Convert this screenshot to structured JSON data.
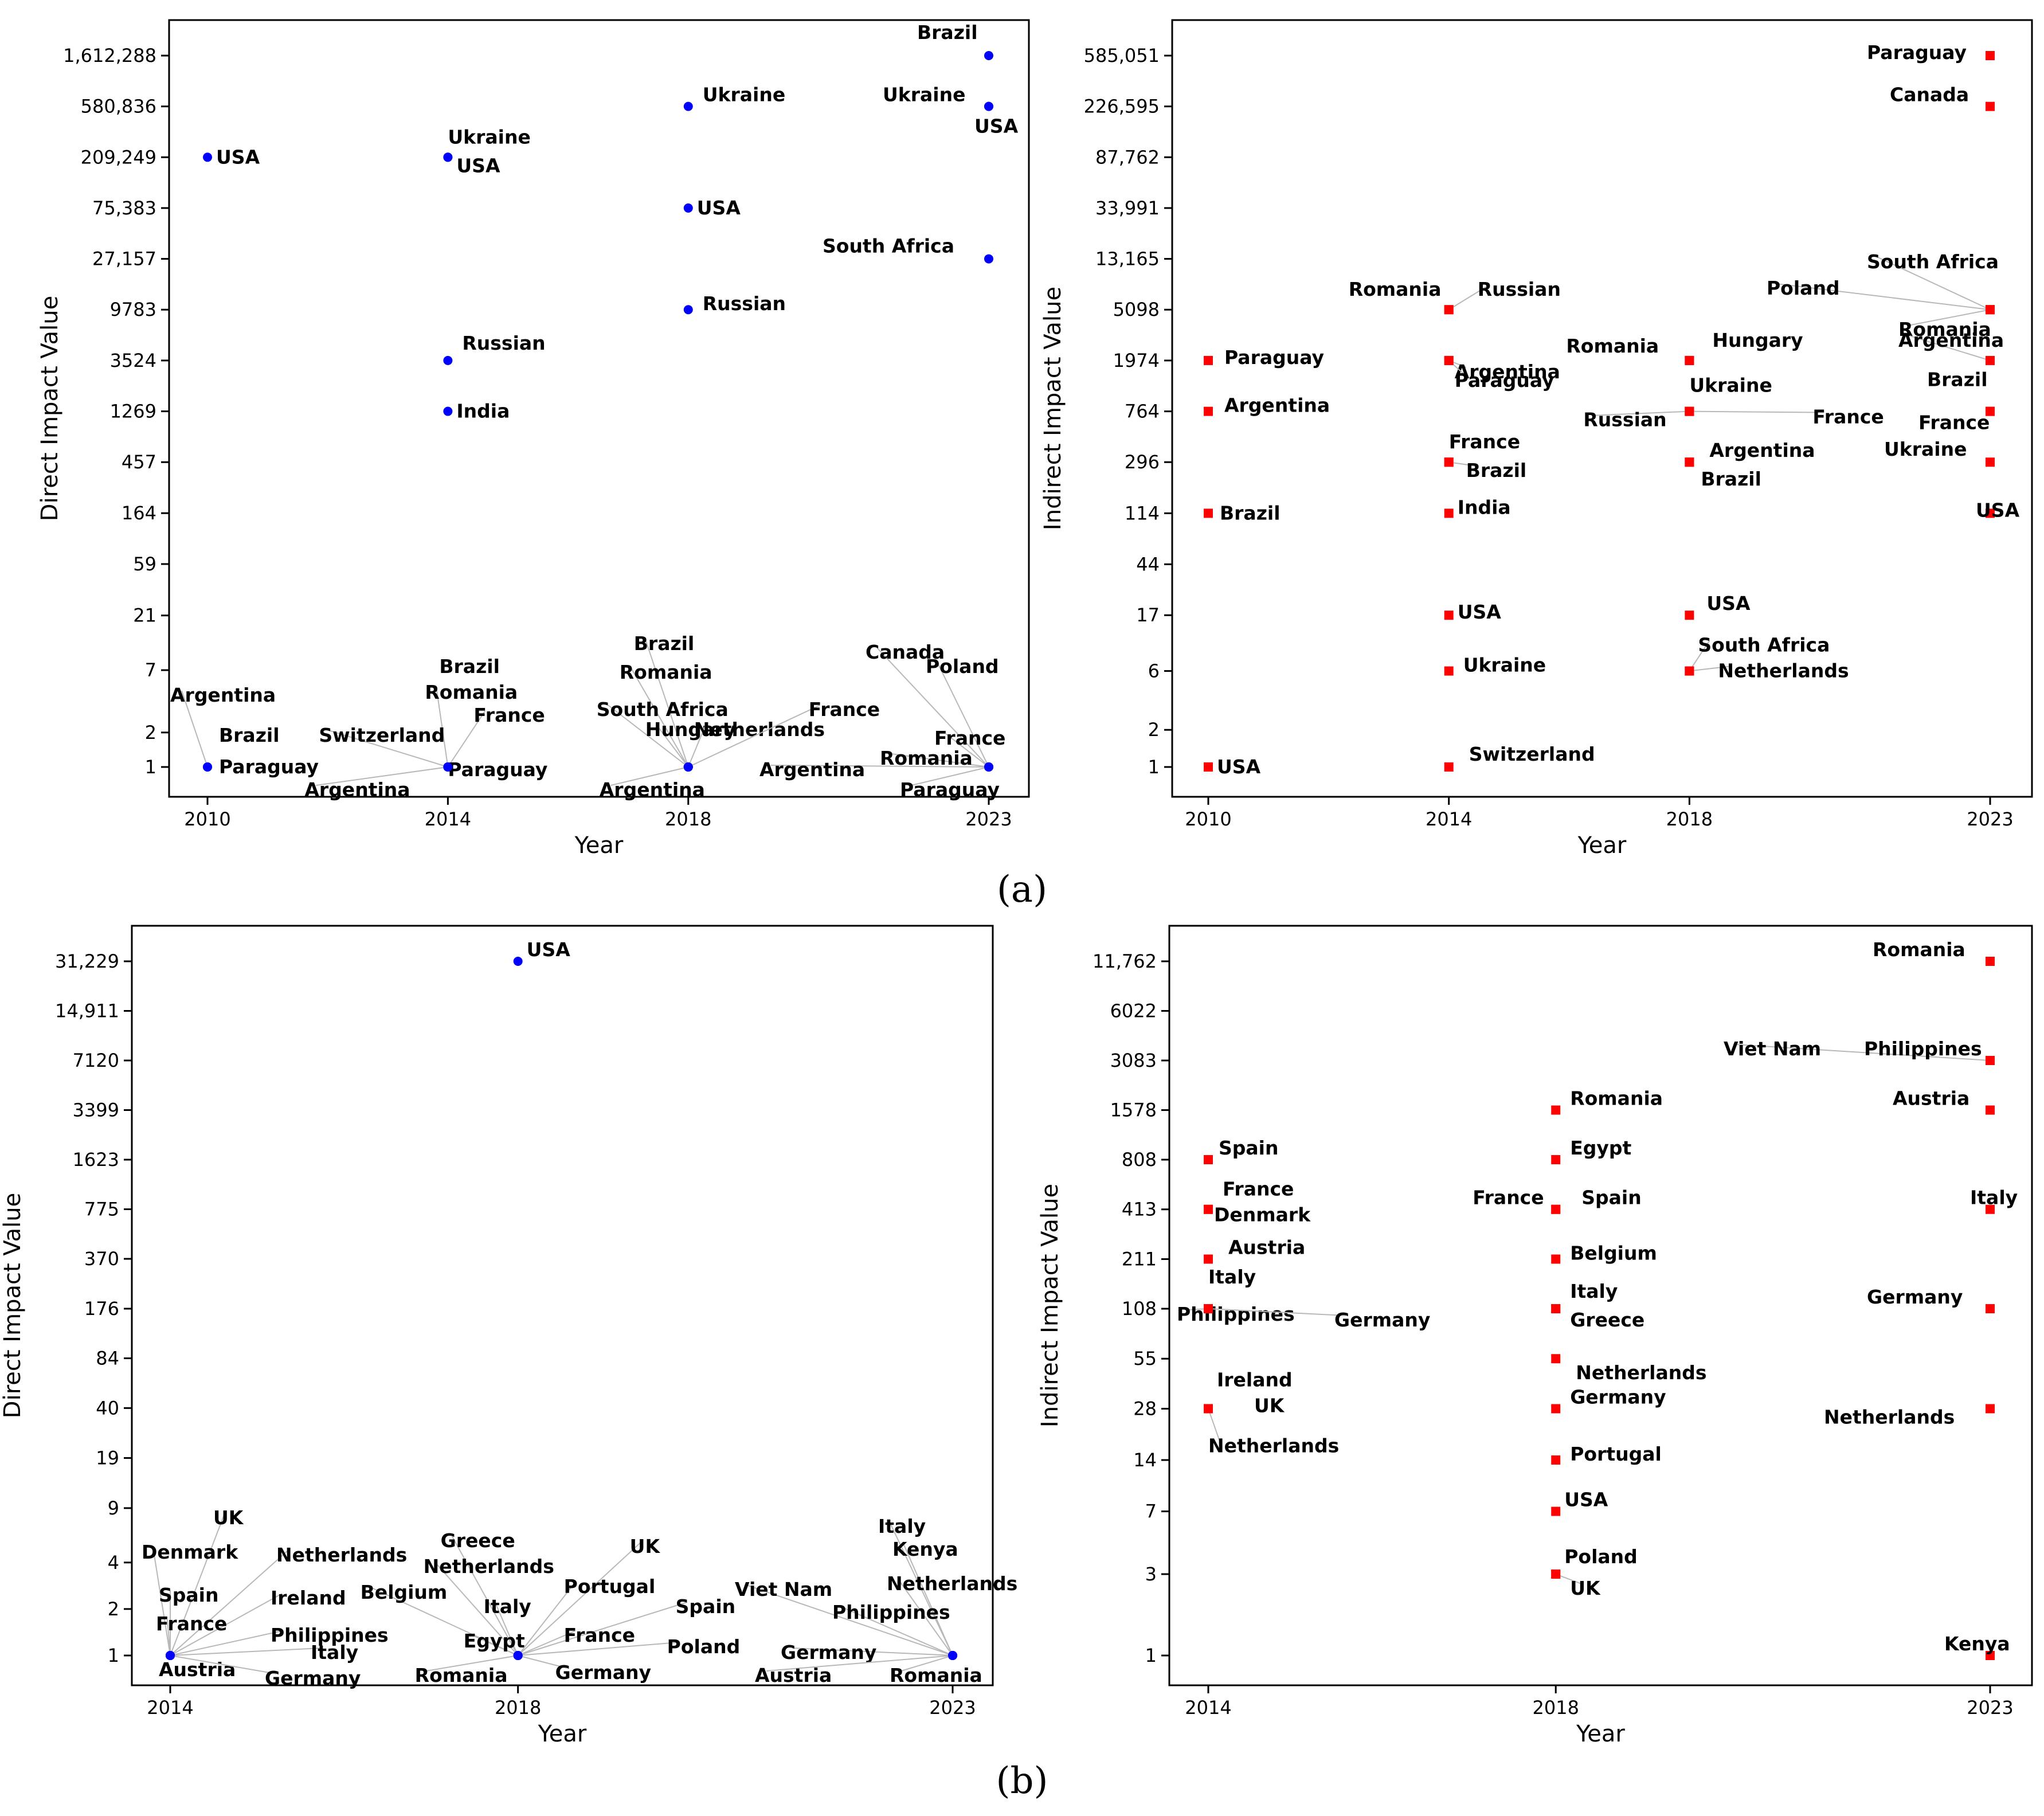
{
  "captions": {
    "a": "(a)",
    "b": "(b)"
  },
  "colors": {
    "direct": "#0000ff",
    "indirect": "#ff0000"
  },
  "chart_data": [
    {
      "id": "a-direct",
      "type": "scatter",
      "marker": "circle",
      "xlabel": "Year",
      "ylabel": "Direct Impact Value",
      "xticks": [
        "2010",
        "2014",
        "2018",
        "2023"
      ],
      "yticks": [
        "1",
        "2",
        "7",
        "21",
        "59",
        "164",
        "457",
        "1269",
        "3524",
        "9783",
        "27,157",
        "75,383",
        "209,249",
        "580,836",
        "1,612,288"
      ],
      "points": [
        {
          "x": 2010,
          "y": 209249,
          "label": "USA"
        },
        {
          "x": 2010,
          "y": 1,
          "label": "Paraguay"
        },
        {
          "x": 2010,
          "y": 1,
          "label": "Brazil"
        },
        {
          "x": 2010,
          "y": 1,
          "label": "Argentina"
        },
        {
          "x": 2014,
          "y": 209249,
          "label": "Ukraine"
        },
        {
          "x": 2014,
          "y": 209249,
          "label": "USA"
        },
        {
          "x": 2014,
          "y": 3524,
          "label": "Russian"
        },
        {
          "x": 2014,
          "y": 1269,
          "label": "India"
        },
        {
          "x": 2014,
          "y": 1,
          "label": "Brazil"
        },
        {
          "x": 2014,
          "y": 1,
          "label": "Romania"
        },
        {
          "x": 2014,
          "y": 1,
          "label": "France"
        },
        {
          "x": 2014,
          "y": 1,
          "label": "Switzerland"
        },
        {
          "x": 2014,
          "y": 1,
          "label": "Paraguay"
        },
        {
          "x": 2014,
          "y": 1,
          "label": "Argentina"
        },
        {
          "x": 2018,
          "y": 580836,
          "label": "Ukraine"
        },
        {
          "x": 2018,
          "y": 75383,
          "label": "USA"
        },
        {
          "x": 2018,
          "y": 9783,
          "label": "Russian"
        },
        {
          "x": 2018,
          "y": 1,
          "label": "Brazil"
        },
        {
          "x": 2018,
          "y": 1,
          "label": "Romania"
        },
        {
          "x": 2018,
          "y": 1,
          "label": "South Africa"
        },
        {
          "x": 2018,
          "y": 1,
          "label": "Hungary"
        },
        {
          "x": 2018,
          "y": 1,
          "label": "Netherlands"
        },
        {
          "x": 2018,
          "y": 1,
          "label": "France"
        },
        {
          "x": 2018,
          "y": 1,
          "label": "Argentina"
        },
        {
          "x": 2023,
          "y": 1612288,
          "label": "Brazil"
        },
        {
          "x": 2023,
          "y": 580836,
          "label": "Ukraine"
        },
        {
          "x": 2023,
          "y": 580836,
          "label": "USA"
        },
        {
          "x": 2023,
          "y": 27157,
          "label": "South Africa"
        },
        {
          "x": 2023,
          "y": 1,
          "label": "Canada"
        },
        {
          "x": 2023,
          "y": 1,
          "label": "Poland"
        },
        {
          "x": 2023,
          "y": 1,
          "label": "France"
        },
        {
          "x": 2023,
          "y": 1,
          "label": "Romania"
        },
        {
          "x": 2023,
          "y": 1,
          "label": "Argentina"
        },
        {
          "x": 2023,
          "y": 1,
          "label": "Paraguay"
        }
      ]
    },
    {
      "id": "a-indirect",
      "type": "scatter",
      "marker": "square",
      "xlabel": "Year",
      "ylabel": "Indirect Impact Value",
      "xticks": [
        "2010",
        "2014",
        "2018",
        "2023"
      ],
      "yticks": [
        "1",
        "2",
        "6",
        "17",
        "44",
        "114",
        "296",
        "764",
        "1974",
        "5098",
        "13,165",
        "33,991",
        "87,762",
        "226,595",
        "585,051"
      ],
      "points": [
        {
          "x": 2010,
          "y": 1974,
          "label": "Paraguay"
        },
        {
          "x": 2010,
          "y": 764,
          "label": "Argentina"
        },
        {
          "x": 2010,
          "y": 114,
          "label": "Brazil"
        },
        {
          "x": 2010,
          "y": 1,
          "label": "USA"
        },
        {
          "x": 2014,
          "y": 5098,
          "label": "Romania"
        },
        {
          "x": 2014,
          "y": 5098,
          "label": "Russian"
        },
        {
          "x": 2014,
          "y": 1974,
          "label": "Argentina"
        },
        {
          "x": 2014,
          "y": 1974,
          "label": "Paraguay"
        },
        {
          "x": 2014,
          "y": 296,
          "label": "France"
        },
        {
          "x": 2014,
          "y": 296,
          "label": "Brazil"
        },
        {
          "x": 2014,
          "y": 114,
          "label": "India"
        },
        {
          "x": 2014,
          "y": 17,
          "label": "USA"
        },
        {
          "x": 2014,
          "y": 6,
          "label": "Ukraine"
        },
        {
          "x": 2014,
          "y": 1,
          "label": "Switzerland"
        },
        {
          "x": 2018,
          "y": 1974,
          "label": "Romania"
        },
        {
          "x": 2018,
          "y": 1974,
          "label": "Hungary"
        },
        {
          "x": 2018,
          "y": 764,
          "label": "Ukraine"
        },
        {
          "x": 2018,
          "y": 764,
          "label": "Russian"
        },
        {
          "x": 2018,
          "y": 764,
          "label": "France"
        },
        {
          "x": 2018,
          "y": 296,
          "label": "Argentina"
        },
        {
          "x": 2018,
          "y": 296,
          "label": "Brazil"
        },
        {
          "x": 2018,
          "y": 17,
          "label": "USA"
        },
        {
          "x": 2018,
          "y": 6,
          "label": "South Africa"
        },
        {
          "x": 2018,
          "y": 6,
          "label": "Netherlands"
        },
        {
          "x": 2023,
          "y": 585051,
          "label": "Paraguay"
        },
        {
          "x": 2023,
          "y": 226595,
          "label": "Canada"
        },
        {
          "x": 2023,
          "y": 5098,
          "label": "South Africa"
        },
        {
          "x": 2023,
          "y": 5098,
          "label": "Poland"
        },
        {
          "x": 2023,
          "y": 5098,
          "label": "Romania"
        },
        {
          "x": 2023,
          "y": 1974,
          "label": "Argentina"
        },
        {
          "x": 2023,
          "y": 764,
          "label": "Brazil"
        },
        {
          "x": 2023,
          "y": 764,
          "label": "France"
        },
        {
          "x": 2023,
          "y": 296,
          "label": "Ukraine"
        },
        {
          "x": 2023,
          "y": 114,
          "label": "USA"
        }
      ]
    },
    {
      "id": "b-direct",
      "type": "scatter",
      "marker": "circle",
      "xlabel": "Year",
      "ylabel": "Direct Impact Value",
      "xticks": [
        "2014",
        "2018",
        "2023"
      ],
      "yticks": [
        "1",
        "2",
        "4",
        "9",
        "19",
        "40",
        "84",
        "176",
        "370",
        "775",
        "1623",
        "3399",
        "7120",
        "14,911",
        "31,229"
      ],
      "points": [
        {
          "x": 2014,
          "y": 1,
          "label": "UK"
        },
        {
          "x": 2014,
          "y": 1,
          "label": "Denmark"
        },
        {
          "x": 2014,
          "y": 1,
          "label": "Netherlands"
        },
        {
          "x": 2014,
          "y": 1,
          "label": "Spain"
        },
        {
          "x": 2014,
          "y": 1,
          "label": "Ireland"
        },
        {
          "x": 2014,
          "y": 1,
          "label": "France"
        },
        {
          "x": 2014,
          "y": 1,
          "label": "Philippines"
        },
        {
          "x": 2014,
          "y": 1,
          "label": "Italy"
        },
        {
          "x": 2014,
          "y": 1,
          "label": "Austria"
        },
        {
          "x": 2014,
          "y": 1,
          "label": "Germany"
        },
        {
          "x": 2018,
          "y": 31229,
          "label": "USA"
        },
        {
          "x": 2018,
          "y": 1,
          "label": "Greece"
        },
        {
          "x": 2018,
          "y": 1,
          "label": "Netherlands"
        },
        {
          "x": 2018,
          "y": 1,
          "label": "Belgium"
        },
        {
          "x": 2018,
          "y": 1,
          "label": "Italy"
        },
        {
          "x": 2018,
          "y": 1,
          "label": "Egypt"
        },
        {
          "x": 2018,
          "y": 1,
          "label": "UK"
        },
        {
          "x": 2018,
          "y": 1,
          "label": "Portugal"
        },
        {
          "x": 2018,
          "y": 1,
          "label": "Spain"
        },
        {
          "x": 2018,
          "y": 1,
          "label": "France"
        },
        {
          "x": 2018,
          "y": 1,
          "label": "Poland"
        },
        {
          "x": 2018,
          "y": 1,
          "label": "Germany"
        },
        {
          "x": 2018,
          "y": 1,
          "label": "Romania"
        },
        {
          "x": 2023,
          "y": 1,
          "label": "Italy"
        },
        {
          "x": 2023,
          "y": 1,
          "label": "Kenya"
        },
        {
          "x": 2023,
          "y": 1,
          "label": "Netherlands"
        },
        {
          "x": 2023,
          "y": 1,
          "label": "Viet Nam"
        },
        {
          "x": 2023,
          "y": 1,
          "label": "Philippines"
        },
        {
          "x": 2023,
          "y": 1,
          "label": "Germany"
        },
        {
          "x": 2023,
          "y": 1,
          "label": "Austria"
        },
        {
          "x": 2023,
          "y": 1,
          "label": "Romania"
        }
      ]
    },
    {
      "id": "b-indirect",
      "type": "scatter",
      "marker": "square",
      "xlabel": "Year",
      "ylabel": "Indirect Impact Value",
      "xticks": [
        "2014",
        "2018",
        "2023"
      ],
      "yticks": [
        "1",
        "3",
        "7",
        "14",
        "28",
        "55",
        "108",
        "211",
        "413",
        "808",
        "1578",
        "3083",
        "6022",
        "11,762"
      ],
      "points": [
        {
          "x": 2014,
          "y": 808,
          "label": "Spain"
        },
        {
          "x": 2014,
          "y": 413,
          "label": "France"
        },
        {
          "x": 2014,
          "y": 413,
          "label": "Denmark"
        },
        {
          "x": 2014,
          "y": 211,
          "label": "Austria"
        },
        {
          "x": 2014,
          "y": 108,
          "label": "Italy"
        },
        {
          "x": 2014,
          "y": 108,
          "label": "Philippines"
        },
        {
          "x": 2014,
          "y": 108,
          "label": "Germany"
        },
        {
          "x": 2014,
          "y": 28,
          "label": "Ireland"
        },
        {
          "x": 2014,
          "y": 28,
          "label": "UK"
        },
        {
          "x": 2014,
          "y": 28,
          "label": "Netherlands"
        },
        {
          "x": 2018,
          "y": 1578,
          "label": "Romania"
        },
        {
          "x": 2018,
          "y": 808,
          "label": "Egypt"
        },
        {
          "x": 2018,
          "y": 413,
          "label": "France"
        },
        {
          "x": 2018,
          "y": 413,
          "label": "Spain"
        },
        {
          "x": 2018,
          "y": 211,
          "label": "Belgium"
        },
        {
          "x": 2018,
          "y": 108,
          "label": "Italy"
        },
        {
          "x": 2018,
          "y": 108,
          "label": "Greece"
        },
        {
          "x": 2018,
          "y": 55,
          "label": "Netherlands"
        },
        {
          "x": 2018,
          "y": 28,
          "label": "Germany"
        },
        {
          "x": 2018,
          "y": 14,
          "label": "Portugal"
        },
        {
          "x": 2018,
          "y": 7,
          "label": "USA"
        },
        {
          "x": 2018,
          "y": 3,
          "label": "Poland"
        },
        {
          "x": 2018,
          "y": 3,
          "label": "UK"
        },
        {
          "x": 2023,
          "y": 11762,
          "label": "Romania"
        },
        {
          "x": 2023,
          "y": 3083,
          "label": "Viet Nam"
        },
        {
          "x": 2023,
          "y": 3083,
          "label": "Philippines"
        },
        {
          "x": 2023,
          "y": 1578,
          "label": "Austria"
        },
        {
          "x": 2023,
          "y": 413,
          "label": "Italy"
        },
        {
          "x": 2023,
          "y": 108,
          "label": "Germany"
        },
        {
          "x": 2023,
          "y": 28,
          "label": "Netherlands"
        },
        {
          "x": 2023,
          "y": 1,
          "label": "Kenya"
        }
      ]
    }
  ]
}
